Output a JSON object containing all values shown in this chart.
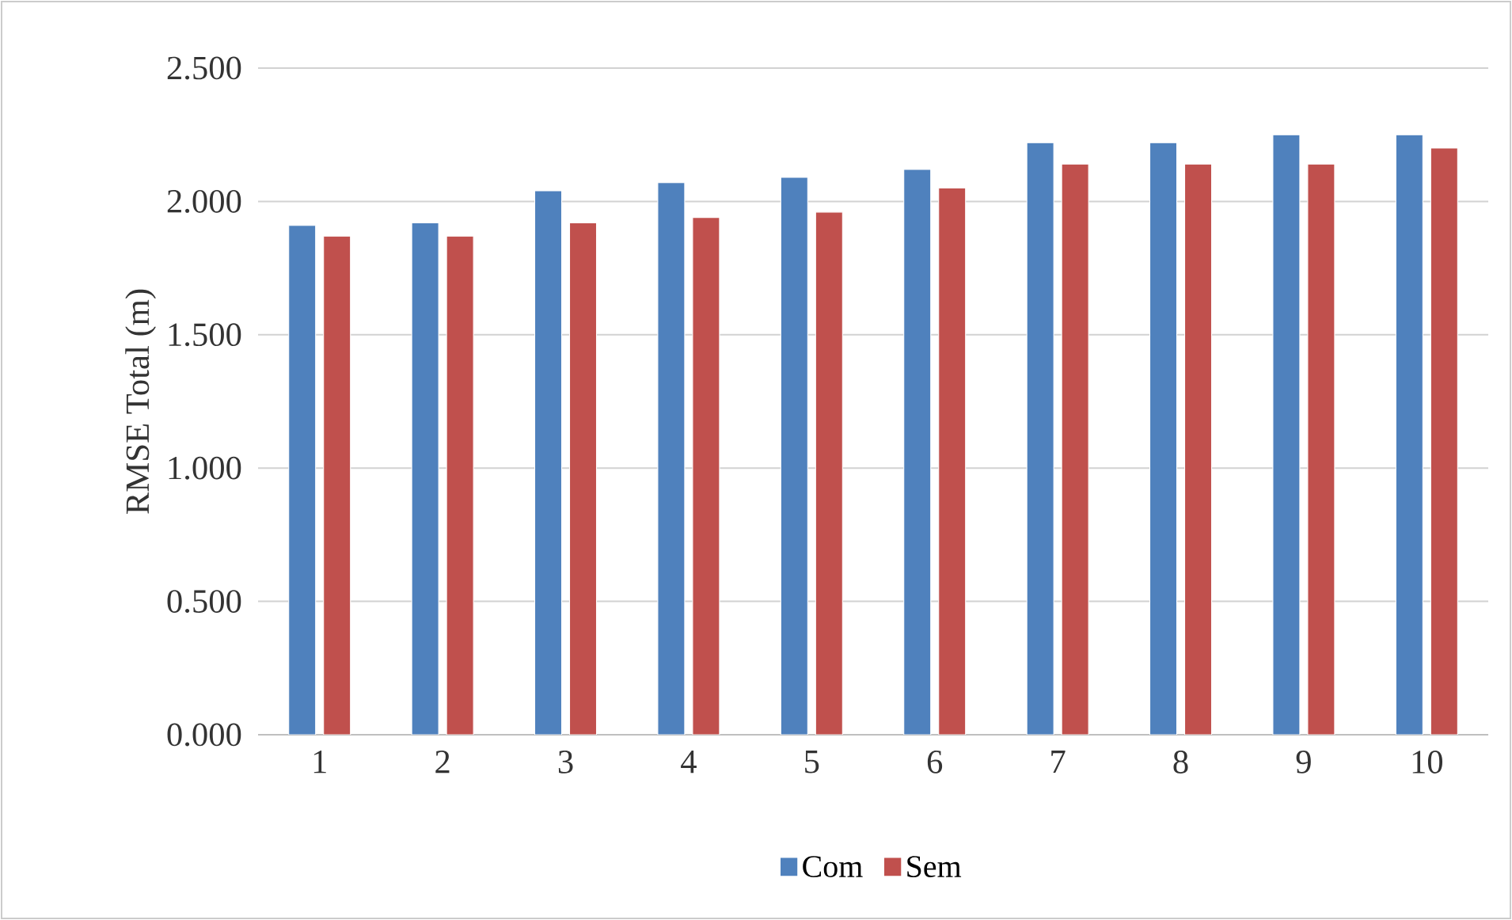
{
  "chart_data": {
    "type": "bar",
    "ylabel": "RMSE Total (m)",
    "categories": [
      "1",
      "2",
      "3",
      "4",
      "5",
      "6",
      "7",
      "8",
      "9",
      "10"
    ],
    "series": [
      {
        "name": "Com",
        "color": "#4f81bd",
        "values": [
          1.91,
          1.92,
          2.04,
          2.07,
          2.09,
          2.12,
          2.22,
          2.22,
          2.25,
          2.25
        ]
      },
      {
        "name": "Sem",
        "color": "#c0504d",
        "values": [
          1.87,
          1.87,
          1.92,
          1.94,
          1.96,
          2.05,
          2.14,
          2.14,
          2.14,
          2.2
        ]
      }
    ],
    "ylim": [
      0,
      2.5
    ],
    "yticks": [
      {
        "value": 0,
        "label": "0.000"
      },
      {
        "value": 0.5,
        "label": "0.500"
      },
      {
        "value": 1,
        "label": "1.000"
      },
      {
        "value": 1.5,
        "label": "1.500"
      },
      {
        "value": 2,
        "label": "2.000"
      },
      {
        "value": 2.5,
        "label": "2.500"
      }
    ],
    "grid": "y",
    "legend": "bottom"
  }
}
